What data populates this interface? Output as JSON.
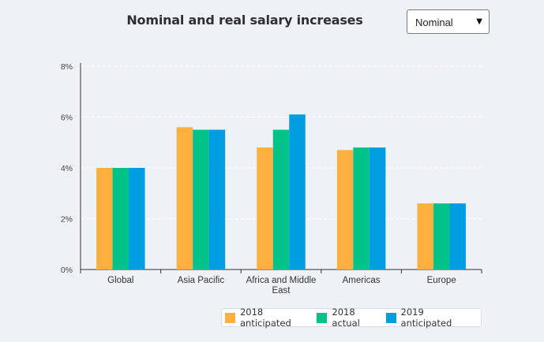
{
  "header": {
    "title": "Nominal and real salary increases"
  },
  "selector": {
    "value": "Nominal",
    "arrow": "▼"
  },
  "colors": {
    "background": "#eef1f5",
    "gridline": "#ffffff",
    "axis": "#333333",
    "series": [
      "#fbb040",
      "#00c389",
      "#009de0"
    ]
  },
  "chart_data": {
    "type": "bar",
    "title": "Nominal and real salary increases",
    "xlabel": "",
    "ylabel": "",
    "categories": [
      "Global",
      "Asia Pacific",
      "Africa and Middle East",
      "Americas",
      "Europe"
    ],
    "category_label_lines": [
      [
        "Global"
      ],
      [
        "Asia Pacific"
      ],
      [
        "Africa and Middle",
        "East"
      ],
      [
        "Americas"
      ],
      [
        "Europe"
      ]
    ],
    "series": [
      {
        "name": "2018 anticipated",
        "values": [
          4.0,
          5.6,
          4.8,
          4.7,
          2.6
        ]
      },
      {
        "name": "2018 actual",
        "values": [
          4.0,
          5.5,
          5.5,
          4.8,
          2.6
        ]
      },
      {
        "name": "2019 anticipated",
        "values": [
          4.0,
          5.5,
          6.1,
          4.8,
          2.6
        ]
      }
    ],
    "ylim": [
      0,
      8
    ],
    "yticks": [
      0,
      2,
      4,
      6,
      8
    ],
    "ytick_labels": [
      "0%",
      "2%",
      "4%",
      "6%",
      "8%"
    ],
    "grid": true,
    "legend_position": "bottom-right"
  }
}
